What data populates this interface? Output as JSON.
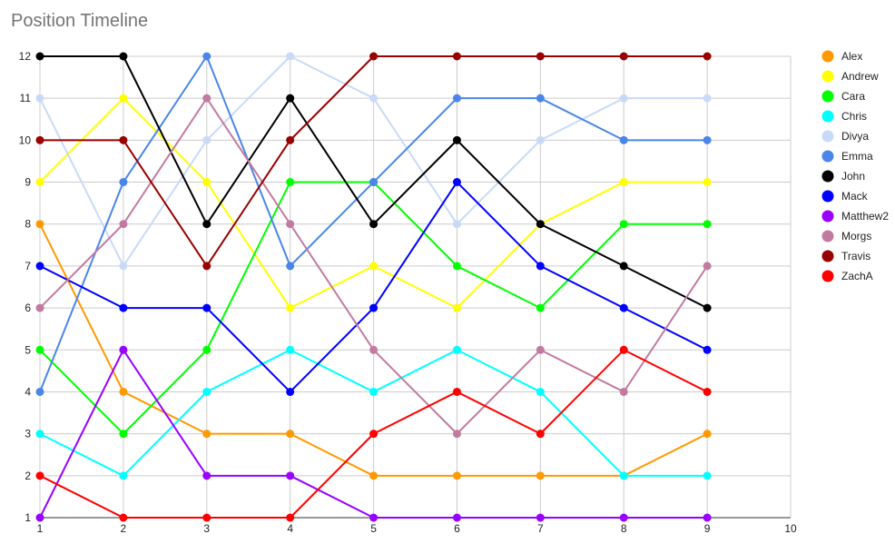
{
  "chart_data": {
    "type": "line",
    "title": "Position Timeline",
    "xlabel": "",
    "ylabel": "",
    "x": [
      1,
      2,
      3,
      4,
      5,
      6,
      7,
      8,
      9
    ],
    "xlim": [
      1,
      10
    ],
    "ylim": [
      1,
      12
    ],
    "x_ticks": [
      1,
      2,
      3,
      4,
      5,
      6,
      7,
      8,
      9,
      10
    ],
    "y_ticks": [
      1,
      2,
      3,
      4,
      5,
      6,
      7,
      8,
      9,
      10,
      11,
      12
    ],
    "grid": true,
    "legend_position": "right",
    "series": [
      {
        "name": "Alex",
        "color": "#ff9900",
        "values": [
          8,
          4,
          3,
          3,
          2,
          2,
          2,
          2,
          3
        ]
      },
      {
        "name": "Andrew",
        "color": "#ffff00",
        "values": [
          9,
          11,
          9,
          6,
          7,
          6,
          8,
          9,
          9
        ]
      },
      {
        "name": "Cara",
        "color": "#00ff00",
        "values": [
          5,
          3,
          5,
          9,
          9,
          7,
          6,
          8,
          8
        ]
      },
      {
        "name": "Chris",
        "color": "#00ffff",
        "values": [
          3,
          2,
          4,
          5,
          4,
          5,
          4,
          2,
          2
        ]
      },
      {
        "name": "Divya",
        "color": "#c9daf8",
        "values": [
          11,
          7,
          10,
          12,
          11,
          8,
          10,
          11,
          11
        ]
      },
      {
        "name": "Emma",
        "color": "#4a86e8",
        "values": [
          4,
          9,
          12,
          7,
          9,
          11,
          11,
          10,
          10
        ]
      },
      {
        "name": "John",
        "color": "#000000",
        "values": [
          12,
          12,
          8,
          11,
          8,
          10,
          8,
          7,
          6
        ]
      },
      {
        "name": "Mack",
        "color": "#0000ff",
        "values": [
          7,
          6,
          6,
          4,
          6,
          9,
          7,
          6,
          5
        ]
      },
      {
        "name": "Matthew2",
        "color": "#9900ff",
        "values": [
          1,
          5,
          2,
          2,
          1,
          1,
          1,
          1,
          1
        ]
      },
      {
        "name": "Morgs",
        "color": "#c27ba0",
        "values": [
          6,
          8,
          11,
          8,
          5,
          3,
          5,
          4,
          7
        ]
      },
      {
        "name": "Travis",
        "color": "#990000",
        "values": [
          10,
          10,
          7,
          10,
          12,
          12,
          12,
          12,
          12
        ]
      },
      {
        "name": "ZachA",
        "color": "#ff0000",
        "values": [
          2,
          1,
          1,
          1,
          3,
          4,
          3,
          5,
          4
        ]
      }
    ]
  }
}
